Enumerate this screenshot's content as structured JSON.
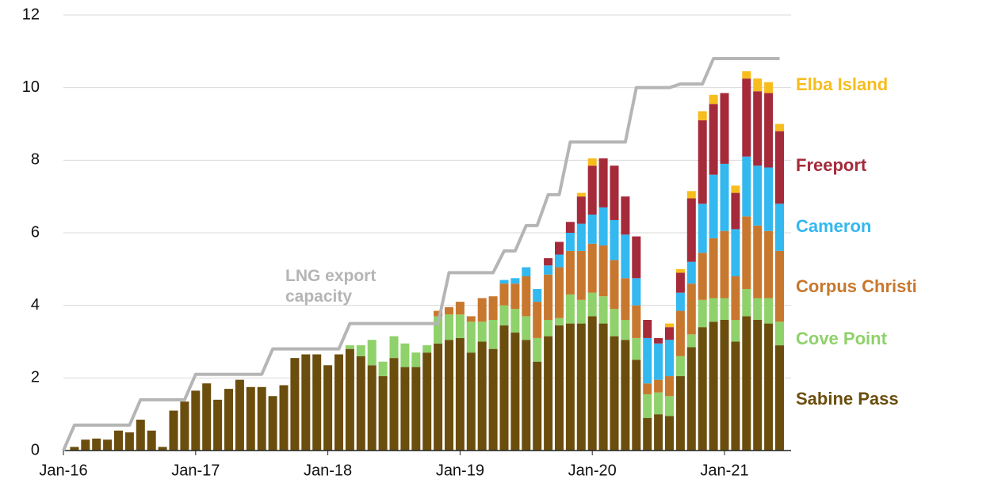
{
  "chart_data": {
    "type": "stacked_bar",
    "categories": [
      "Jan-16",
      null,
      null,
      null,
      null,
      null,
      null,
      null,
      null,
      null,
      null,
      null,
      "Jan-17",
      null,
      null,
      null,
      null,
      null,
      null,
      null,
      null,
      null,
      null,
      null,
      "Jan-18",
      null,
      null,
      null,
      null,
      null,
      null,
      null,
      null,
      null,
      null,
      null,
      "Jan-19",
      null,
      null,
      null,
      null,
      null,
      null,
      null,
      null,
      null,
      null,
      null,
      "Jan-20",
      null,
      null,
      null,
      null,
      null,
      null,
      null,
      null,
      null,
      null,
      null,
      "Jan-21",
      null,
      null,
      null,
      null,
      null
    ],
    "series": [
      {
        "name": "Sabine Pass",
        "color": "#6b4e0e",
        "values": [
          0,
          0.1,
          0.3,
          0.33,
          0.3,
          0.55,
          0.5,
          0.85,
          0.55,
          0.1,
          1.1,
          1.35,
          1.65,
          1.85,
          1.4,
          1.7,
          1.95,
          1.75,
          1.75,
          1.5,
          1.8,
          2.55,
          2.65,
          2.65,
          2.35,
          2.65,
          2.8,
          2.6,
          2.35,
          2.05,
          2.55,
          2.3,
          2.3,
          2.7,
          2.95,
          3.05,
          3.1,
          2.7,
          3.0,
          2.8,
          3.45,
          3.25,
          3.05,
          2.45,
          3.15,
          3.45,
          3.5,
          3.5,
          3.7,
          3.5,
          3.15,
          3.05,
          2.5,
          0.9,
          1.0,
          0.95,
          2.05,
          2.85,
          3.4,
          3.55,
          3.6,
          3.0,
          3.7,
          3.6,
          3.5,
          2.9
        ]
      },
      {
        "name": "Cove Point",
        "color": "#8fd16a",
        "values": [
          0,
          0,
          0,
          0,
          0,
          0,
          0,
          0,
          0,
          0,
          0,
          0,
          0,
          0,
          0,
          0,
          0,
          0,
          0,
          0,
          0,
          0,
          0,
          0,
          0,
          0,
          0.1,
          0.3,
          0.7,
          0.4,
          0.6,
          0.65,
          0.4,
          0.2,
          0.75,
          0.7,
          0.65,
          0.85,
          0.55,
          0.8,
          0.55,
          0.65,
          0.65,
          0.65,
          0.45,
          0.2,
          0.8,
          0.65,
          0.65,
          0.75,
          0.75,
          0.55,
          0.6,
          0.65,
          0.6,
          0.55,
          0.55,
          0.35,
          0.75,
          0.65,
          0.6,
          0.6,
          0.75,
          0.6,
          0.7,
          0.65
        ]
      },
      {
        "name": "Corpus Christi",
        "color": "#c8782e",
        "values": [
          0,
          0,
          0,
          0,
          0,
          0,
          0,
          0,
          0,
          0,
          0,
          0,
          0,
          0,
          0,
          0,
          0,
          0,
          0,
          0,
          0,
          0,
          0,
          0,
          0,
          0,
          0,
          0,
          0,
          0,
          0,
          0,
          0,
          0,
          0.15,
          0.2,
          0.35,
          0.15,
          0.65,
          0.65,
          0.6,
          0.7,
          1.1,
          1.0,
          1.25,
          1.4,
          1.2,
          1.35,
          1.35,
          1.4,
          1.35,
          1.15,
          0.9,
          0.3,
          0.35,
          0.55,
          1.25,
          1.4,
          1.3,
          1.65,
          1.85,
          1.2,
          2.0,
          2.0,
          1.85,
          1.95
        ]
      },
      {
        "name": "Cameron",
        "color": "#33b8f0",
        "values": [
          0,
          0,
          0,
          0,
          0,
          0,
          0,
          0,
          0,
          0,
          0,
          0,
          0,
          0,
          0,
          0,
          0,
          0,
          0,
          0,
          0,
          0,
          0,
          0,
          0,
          0,
          0,
          0,
          0,
          0,
          0,
          0,
          0,
          0,
          0,
          0,
          0,
          0,
          0,
          0,
          0.1,
          0.15,
          0.25,
          0.35,
          0.25,
          0.35,
          0.5,
          0.75,
          0.8,
          1.05,
          1.1,
          1.2,
          0.75,
          1.25,
          1.0,
          1.0,
          0.5,
          0.6,
          1.35,
          1.75,
          1.85,
          1.3,
          1.65,
          1.65,
          1.75,
          1.3
        ]
      },
      {
        "name": "Freeport",
        "color": "#a52a3a",
        "values": [
          0,
          0,
          0,
          0,
          0,
          0,
          0,
          0,
          0,
          0,
          0,
          0,
          0,
          0,
          0,
          0,
          0,
          0,
          0,
          0,
          0,
          0,
          0,
          0,
          0,
          0,
          0,
          0,
          0,
          0,
          0,
          0,
          0,
          0,
          0,
          0,
          0,
          0,
          0,
          0,
          0,
          0,
          0,
          0,
          0.2,
          0.35,
          0.3,
          0.75,
          1.35,
          1.35,
          1.5,
          1.05,
          1.15,
          0.5,
          0.15,
          0.35,
          0.55,
          1.75,
          2.3,
          1.95,
          1.95,
          1.0,
          2.15,
          2.05,
          2.05,
          2.0
        ]
      },
      {
        "name": "Elba Island",
        "color": "#f7bd1c",
        "values": [
          0,
          0,
          0,
          0,
          0,
          0,
          0,
          0,
          0,
          0,
          0,
          0,
          0,
          0,
          0,
          0,
          0,
          0,
          0,
          0,
          0,
          0,
          0,
          0,
          0,
          0,
          0,
          0,
          0,
          0,
          0,
          0,
          0,
          0,
          0,
          0,
          0,
          0,
          0,
          0,
          0,
          0,
          0,
          0,
          0,
          0,
          0,
          0.1,
          0.2,
          0,
          0,
          0,
          0,
          0,
          0,
          0.1,
          0.1,
          0.2,
          0.25,
          0.25,
          0,
          0.2,
          0.2,
          0.35,
          0.3,
          0.2
        ]
      }
    ],
    "line": {
      "name": "LNG export capacity",
      "color": "#b5b5b5",
      "values": [
        0,
        0.7,
        0.7,
        0.7,
        0.7,
        0.7,
        0.7,
        1.4,
        1.4,
        1.4,
        1.4,
        1.4,
        2.1,
        2.1,
        2.1,
        2.1,
        2.1,
        2.1,
        2.1,
        2.8,
        2.8,
        2.8,
        2.8,
        2.8,
        2.8,
        2.8,
        3.5,
        3.5,
        3.5,
        3.5,
        3.5,
        3.5,
        3.5,
        3.5,
        3.5,
        4.9,
        4.9,
        4.9,
        4.9,
        4.9,
        5.5,
        5.5,
        6.2,
        6.2,
        7.05,
        7.05,
        8.5,
        8.5,
        8.5,
        8.5,
        8.5,
        8.5,
        10.0,
        10.0,
        10.0,
        10.0,
        10.1,
        10.1,
        10.1,
        10.8,
        10.8,
        10.8,
        10.8,
        10.8,
        10.8,
        10.8
      ]
    },
    "ylim": [
      0,
      12
    ],
    "yticks": [
      0,
      2,
      4,
      6,
      8,
      10,
      12
    ],
    "grid": true
  }
}
